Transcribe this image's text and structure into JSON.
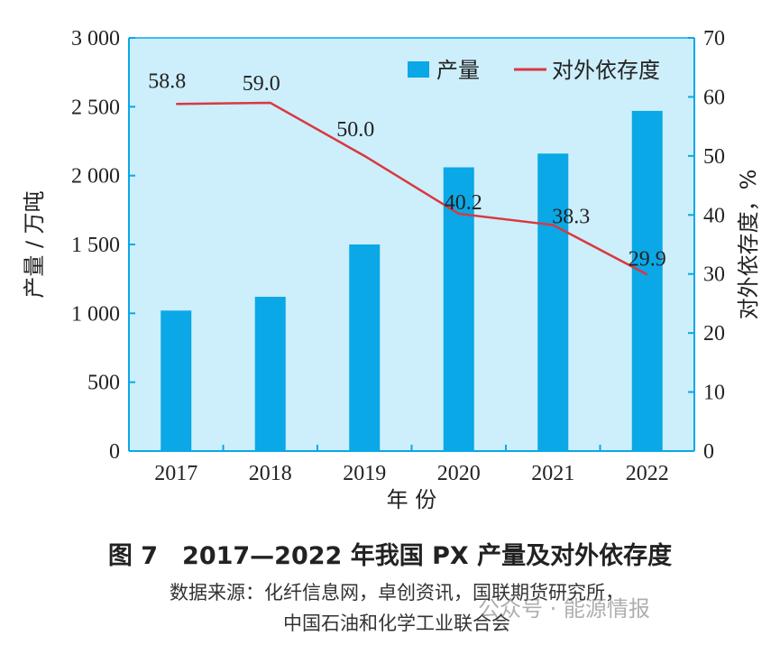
{
  "chart_data": {
    "type": "bar+line",
    "categories": [
      "2017",
      "2018",
      "2019",
      "2020",
      "2021",
      "2022"
    ],
    "series": [
      {
        "name": "产量",
        "type": "bar",
        "axis": "left",
        "color": "#0aa8e6",
        "values": [
          1020,
          1120,
          1500,
          2060,
          2160,
          2470
        ]
      },
      {
        "name": "对外依存度",
        "type": "line",
        "axis": "right",
        "color": "#d9383f",
        "values": [
          58.8,
          59.0,
          50.0,
          40.2,
          38.3,
          29.9
        ],
        "labels": [
          "58.8",
          "59.0",
          "50.0",
          "40.2",
          "38.3",
          "29.9"
        ]
      }
    ],
    "xlabel": "年 份",
    "ylabel_left": "产量 / 万吨",
    "ylabel_right": "对外依存度，%",
    "ylim_left": [
      0,
      3000
    ],
    "ylim_right": [
      0,
      70
    ],
    "yticks_left": [
      "0",
      "500",
      "1 000",
      "1 500",
      "2 000",
      "2 500",
      "3 000"
    ],
    "yticks_right": [
      "0",
      "10",
      "20",
      "30",
      "40",
      "50",
      "60",
      "70"
    ],
    "legend_position": "top-right",
    "plot_background": "#cdeefb",
    "grid": false
  },
  "caption": {
    "title": "图 7　2017—2022 年我国 PX 产量及对外依存度",
    "source_line1": "数据来源：化纤信息网，卓创资讯，国联期货研究所，",
    "source_line2": "中国石油和化学工业联合会"
  },
  "watermark": "公众号 · 能源情报"
}
